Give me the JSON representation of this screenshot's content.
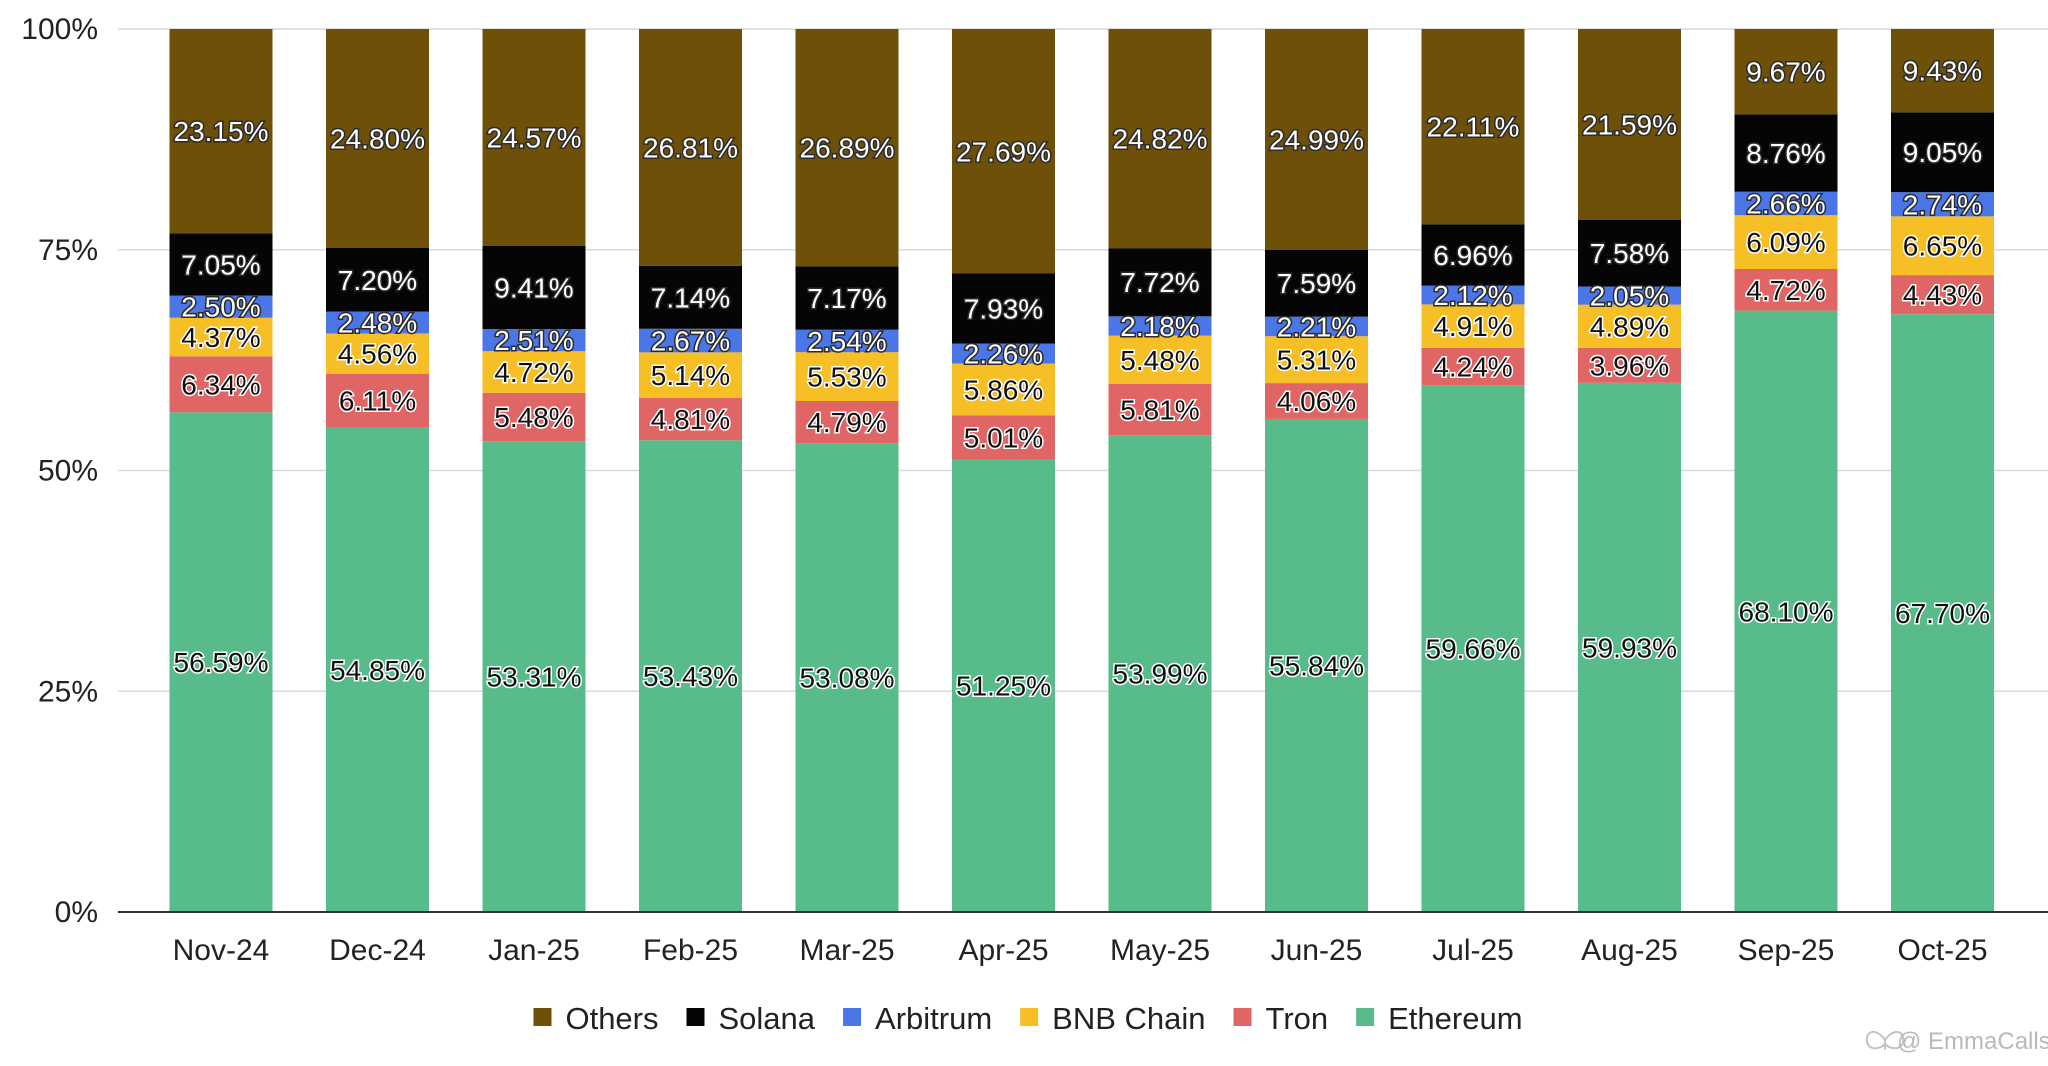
{
  "chart_data": {
    "type": "bar",
    "stacked": true,
    "title": "",
    "xlabel": "",
    "ylabel": "",
    "ylim": [
      0,
      100
    ],
    "y_ticks": [
      "0%",
      "25%",
      "50%",
      "75%",
      "100%"
    ],
    "y_tick_values": [
      0,
      25,
      50,
      75,
      100
    ],
    "categories": [
      "Nov-24",
      "Dec-24",
      "Jan-25",
      "Feb-25",
      "Mar-25",
      "Apr-25",
      "May-25",
      "Jun-25",
      "Jul-25",
      "Aug-25",
      "Sep-25",
      "Oct-25"
    ],
    "series": [
      {
        "name": "Ethereum",
        "color": "#57bb8a",
        "label_color": "#111111",
        "values": [
          56.59,
          54.85,
          53.31,
          53.43,
          53.08,
          51.25,
          53.99,
          55.84,
          59.66,
          59.93,
          68.1,
          67.7
        ],
        "labels": [
          "56.59%",
          "54.85%",
          "53.31%",
          "53.43%",
          "53.08%",
          "51.25%",
          "53.99%",
          "55.84%",
          "59.66%",
          "59.93%",
          "68.10%",
          "67.70%"
        ]
      },
      {
        "name": "Tron",
        "color": "#e06666",
        "label_color": "#111111",
        "values": [
          6.34,
          6.11,
          5.48,
          4.81,
          4.79,
          5.01,
          5.81,
          4.06,
          4.24,
          3.96,
          4.72,
          4.43
        ],
        "labels": [
          "6.34%",
          "6.11%",
          "5.48%",
          "4.81%",
          "4.79%",
          "5.01%",
          "5.81%",
          "4.06%",
          "4.24%",
          "3.96%",
          "4.72%",
          "4.43%"
        ]
      },
      {
        "name": "BNB Chain",
        "color": "#f6bf26",
        "label_color": "#111111",
        "values": [
          4.37,
          4.56,
          4.72,
          5.14,
          5.53,
          5.86,
          5.48,
          5.31,
          4.91,
          4.89,
          6.09,
          6.65
        ],
        "labels": [
          "4.37%",
          "4.56%",
          "4.72%",
          "5.14%",
          "5.53%",
          "5.86%",
          "5.48%",
          "5.31%",
          "4.91%",
          "4.89%",
          "6.09%",
          "6.65%"
        ]
      },
      {
        "name": "Arbitrum",
        "color": "#4a76e8",
        "label_color": "#ffffff",
        "values": [
          2.5,
          2.48,
          2.51,
          2.67,
          2.54,
          2.26,
          2.18,
          2.21,
          2.12,
          2.05,
          2.66,
          2.74
        ],
        "labels": [
          "2.50%",
          "2.48%",
          "2.51%",
          "2.67%",
          "2.54%",
          "2.26%",
          "2.18%",
          "2.21%",
          "2.12%",
          "2.05%",
          "2.66%",
          "2.74%"
        ]
      },
      {
        "name": "Solana",
        "color": "#050505",
        "label_color": "#ffffff",
        "values": [
          7.05,
          7.2,
          9.41,
          7.14,
          7.17,
          7.93,
          7.72,
          7.59,
          6.96,
          7.58,
          8.76,
          9.05
        ],
        "labels": [
          "7.05%",
          "7.20%",
          "9.41%",
          "7.14%",
          "7.17%",
          "7.93%",
          "7.72%",
          "7.59%",
          "6.96%",
          "7.58%",
          "8.76%",
          "9.05%"
        ]
      },
      {
        "name": "Others",
        "color": "#6e5009",
        "label_color": "#ffffff",
        "values": [
          23.15,
          24.8,
          24.57,
          26.81,
          26.89,
          27.69,
          24.82,
          24.99,
          22.11,
          21.59,
          9.67,
          9.43
        ],
        "labels": [
          "23.15%",
          "24.80%",
          "24.57%",
          "26.81%",
          "26.89%",
          "27.69%",
          "24.82%",
          "24.99%",
          "22.11%",
          "21.59%",
          "9.67%",
          "9.43%"
        ]
      }
    ],
    "legend": {
      "position": "bottom",
      "order": [
        "Others",
        "Solana",
        "Arbitrum",
        "BNB Chain",
        "Tron",
        "Ethereum"
      ]
    },
    "grid": true
  },
  "watermark": {
    "text": "@ EmmaCalls",
    "icon": "butterfly-icon"
  }
}
